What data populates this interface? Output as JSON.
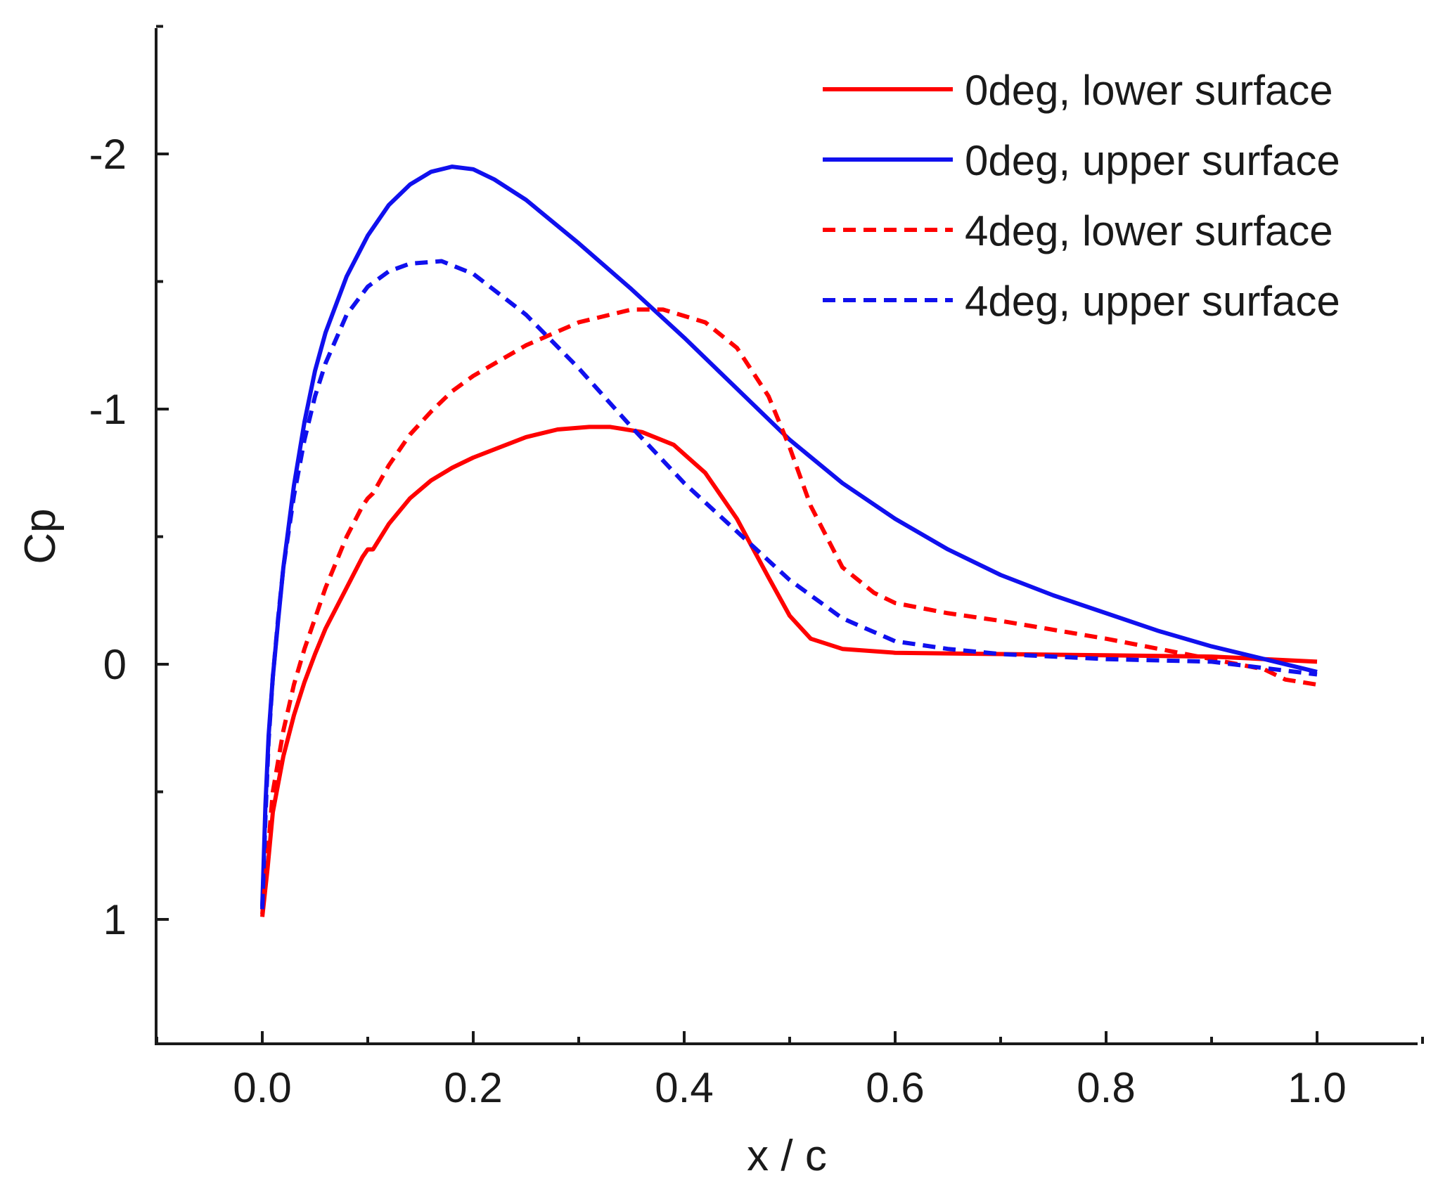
{
  "chart_data": {
    "type": "line",
    "title": "",
    "xlabel": "x / c",
    "ylabel": "Cp",
    "xlim": [
      -0.1,
      1.1
    ],
    "ylim": [
      1.5,
      -2.5
    ],
    "y_axis_inverted": true,
    "grid": false,
    "legend_position": "top-right",
    "x_ticks": [
      "0.0",
      "0.2",
      "0.4",
      "0.6",
      "0.8",
      "1.0"
    ],
    "y_ticks": [
      "-2",
      "-1",
      "0",
      "1"
    ],
    "series": [
      {
        "name": "0deg, lower surface",
        "color": "#ff0000",
        "dash": "solid",
        "x": [
          0.0,
          0.005,
          0.01,
          0.02,
          0.03,
          0.04,
          0.05,
          0.06,
          0.08,
          0.095,
          0.1,
          0.105,
          0.12,
          0.14,
          0.16,
          0.18,
          0.2,
          0.25,
          0.28,
          0.31,
          0.33,
          0.36,
          0.39,
          0.42,
          0.45,
          0.48,
          0.5,
          0.52,
          0.55,
          0.6,
          0.7,
          0.8,
          0.9,
          0.95,
          1.0
        ],
        "y": [
          0.99,
          0.8,
          0.58,
          0.36,
          0.2,
          0.07,
          -0.04,
          -0.14,
          -0.3,
          -0.42,
          -0.45,
          -0.45,
          -0.55,
          -0.65,
          -0.72,
          -0.77,
          -0.81,
          -0.89,
          -0.92,
          -0.93,
          -0.93,
          -0.91,
          -0.86,
          -0.75,
          -0.57,
          -0.34,
          -0.19,
          -0.1,
          -0.06,
          -0.045,
          -0.04,
          -0.035,
          -0.03,
          -0.02,
          -0.01
        ]
      },
      {
        "name": "0deg, upper surface",
        "color": "#1010ee",
        "dash": "solid",
        "x": [
          0.0,
          0.003,
          0.006,
          0.01,
          0.015,
          0.02,
          0.03,
          0.04,
          0.05,
          0.06,
          0.08,
          0.1,
          0.12,
          0.14,
          0.16,
          0.18,
          0.2,
          0.22,
          0.25,
          0.3,
          0.35,
          0.4,
          0.45,
          0.5,
          0.55,
          0.6,
          0.65,
          0.7,
          0.75,
          0.8,
          0.85,
          0.9,
          0.95,
          1.0
        ],
        "y": [
          0.95,
          0.55,
          0.28,
          0.05,
          -0.17,
          -0.38,
          -0.7,
          -0.95,
          -1.15,
          -1.3,
          -1.52,
          -1.68,
          -1.8,
          -1.88,
          -1.93,
          -1.95,
          -1.94,
          -1.9,
          -1.82,
          -1.65,
          -1.47,
          -1.28,
          -1.08,
          -0.88,
          -0.71,
          -0.57,
          -0.45,
          -0.35,
          -0.27,
          -0.2,
          -0.13,
          -0.07,
          -0.02,
          0.03
        ]
      },
      {
        "name": "4deg, lower surface",
        "color": "#ff0000",
        "dash": "dashed",
        "x": [
          0.0,
          0.005,
          0.01,
          0.02,
          0.03,
          0.04,
          0.05,
          0.06,
          0.08,
          0.095,
          0.1,
          0.105,
          0.12,
          0.14,
          0.16,
          0.18,
          0.2,
          0.25,
          0.3,
          0.35,
          0.38,
          0.42,
          0.45,
          0.48,
          0.5,
          0.52,
          0.55,
          0.58,
          0.6,
          0.65,
          0.7,
          0.8,
          0.9,
          0.95,
          0.97,
          1.0
        ],
        "y": [
          0.98,
          0.75,
          0.5,
          0.26,
          0.08,
          -0.06,
          -0.18,
          -0.3,
          -0.5,
          -0.62,
          -0.65,
          -0.67,
          -0.78,
          -0.9,
          -0.99,
          -1.07,
          -1.13,
          -1.25,
          -1.34,
          -1.39,
          -1.39,
          -1.34,
          -1.24,
          -1.05,
          -0.85,
          -0.62,
          -0.38,
          -0.28,
          -0.24,
          -0.2,
          -0.17,
          -0.1,
          -0.02,
          0.02,
          0.06,
          0.08
        ]
      },
      {
        "name": "4deg, upper surface",
        "color": "#1010ee",
        "dash": "dashed",
        "x": [
          0.0,
          0.003,
          0.006,
          0.01,
          0.015,
          0.02,
          0.03,
          0.04,
          0.05,
          0.06,
          0.08,
          0.1,
          0.12,
          0.14,
          0.17,
          0.2,
          0.25,
          0.3,
          0.35,
          0.4,
          0.45,
          0.5,
          0.55,
          0.6,
          0.65,
          0.7,
          0.8,
          0.9,
          1.0
        ],
        "y": [
          0.96,
          0.6,
          0.3,
          0.05,
          -0.18,
          -0.38,
          -0.66,
          -0.88,
          -1.05,
          -1.18,
          -1.37,
          -1.48,
          -1.54,
          -1.57,
          -1.58,
          -1.53,
          -1.37,
          -1.16,
          -0.93,
          -0.71,
          -0.52,
          -0.33,
          -0.18,
          -0.09,
          -0.06,
          -0.04,
          -0.02,
          -0.01,
          0.04
        ]
      }
    ]
  }
}
